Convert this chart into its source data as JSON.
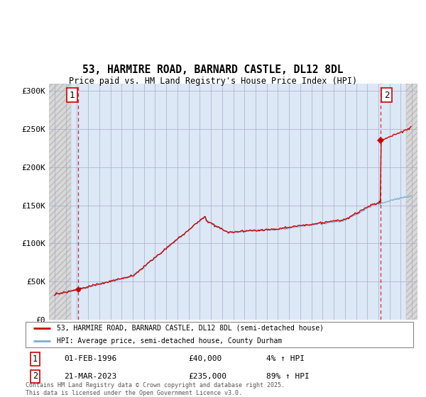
{
  "title": "53, HARMIRE ROAD, BARNARD CASTLE, DL12 8DL",
  "subtitle": "Price paid vs. HM Land Registry's House Price Index (HPI)",
  "legend_line1": "53, HARMIRE ROAD, BARNARD CASTLE, DL12 8DL (semi-detached house)",
  "legend_line2": "HPI: Average price, semi-detached house, County Durham",
  "annotation1_date": "01-FEB-1996",
  "annotation1_price": "£40,000",
  "annotation1_hpi": "4% ↑ HPI",
  "annotation2_date": "21-MAR-2023",
  "annotation2_price": "£235,000",
  "annotation2_hpi": "89% ↑ HPI",
  "footer": "Contains HM Land Registry data © Crown copyright and database right 2025.\nThis data is licensed under the Open Government Licence v3.0.",
  "property_color": "#cc0000",
  "hpi_color": "#7bafd4",
  "ylim": [
    0,
    310000
  ],
  "yticks": [
    0,
    50000,
    100000,
    150000,
    200000,
    250000,
    300000
  ],
  "ytick_labels": [
    "£0",
    "£50K",
    "£100K",
    "£150K",
    "£200K",
    "£250K",
    "£300K"
  ],
  "sale1_x": 1996.08,
  "sale1_y": 40000,
  "sale2_x": 2023.21,
  "sale2_y": 235000,
  "xmin": 1993.5,
  "xmax": 2026.5,
  "hatch_left_end": 1995.5,
  "hatch_right_start": 2025.5,
  "bg_color": "#dce8f5",
  "hatch_bg": "#e8e8e8"
}
